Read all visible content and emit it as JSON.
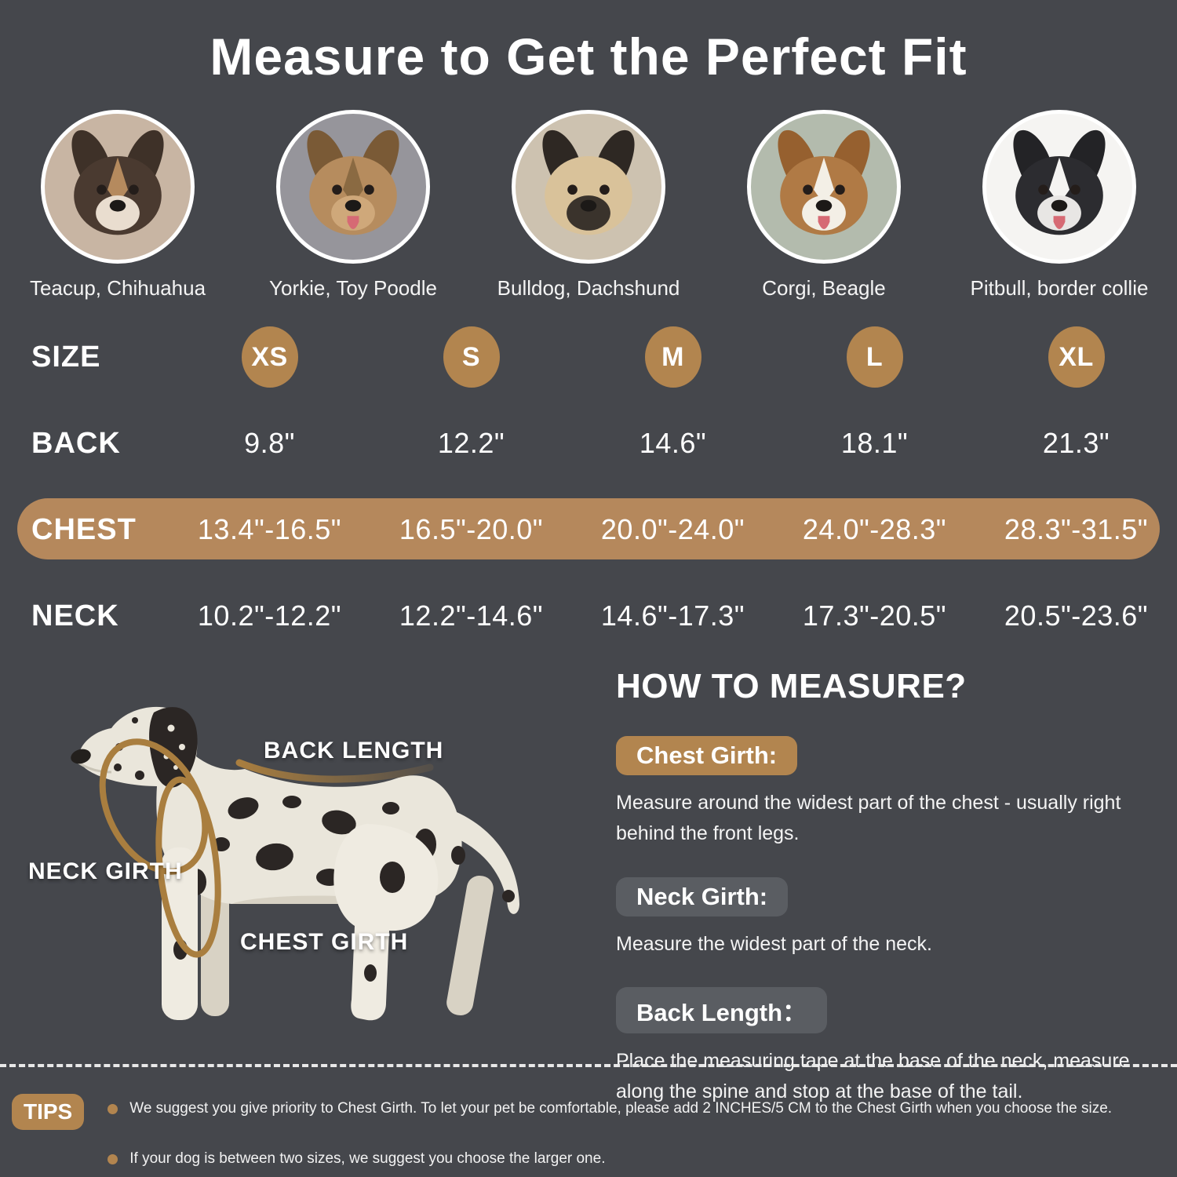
{
  "title": "Measure to Get the Perfect Fit",
  "breeds": [
    {
      "label": "Teacup, Chihuahua",
      "icon": "dog-photo-chihuahua",
      "avatar": {
        "bg": "#c8b5a3",
        "ear": "#3e3128",
        "head": "#4a3a30",
        "muzzle": "#e9ddcf",
        "blaze": "#b58a5e",
        "tongue": ""
      }
    },
    {
      "label": "Yorkie, Toy Poodle",
      "icon": "dog-photo-yorkie",
      "avatar": {
        "bg": "#96959b",
        "ear": "#7a5a36",
        "head": "#b68c5e",
        "muzzle": "#cfa87a",
        "blaze": "#8a6a42",
        "tongue": "#d66a74"
      }
    },
    {
      "label": "Bulldog, Dachshund",
      "icon": "dog-photo-pug",
      "avatar": {
        "bg": "#cdc2b0",
        "ear": "#2e2823",
        "head": "#d9c29a",
        "muzzle": "#3a332c",
        "blaze": "",
        "tongue": ""
      }
    },
    {
      "label": "Corgi, Beagle",
      "icon": "dog-photo-beagle",
      "avatar": {
        "bg": "#b3bbad",
        "ear": "#96602f",
        "head": "#b07a45",
        "muzzle": "#f3efe6",
        "blaze": "#f3efe6",
        "tongue": "#d66a74"
      }
    },
    {
      "label": "Pitbull, border collie",
      "icon": "dog-photo-border-collie",
      "avatar": {
        "bg": "#f5f4f2",
        "ear": "#232326",
        "head": "#2c2c30",
        "muzzle": "#e8e6e4",
        "blaze": "#f5f4f2",
        "tongue": "#d66a74"
      }
    }
  ],
  "size_table": {
    "rows": [
      {
        "label": "SIZE",
        "values": [
          "XS",
          "S",
          "M",
          "L",
          "XL"
        ]
      },
      {
        "label": "BACK",
        "values": [
          "9.8\"",
          "12.2\"",
          "14.6\"",
          "18.1\"",
          "21.3\""
        ]
      },
      {
        "label": "CHEST",
        "values": [
          "13.4\"-16.5\"",
          "16.5\"-20.0\"",
          "20.0\"-24.0\"",
          "24.0\"-28.3\"",
          "28.3\"-31.5\""
        ],
        "highlighted": true
      },
      {
        "label": "NECK",
        "values": [
          "10.2\"-12.2\"",
          "12.2\"-14.6\"",
          "14.6\"-17.3\"",
          "17.3\"-20.5\"",
          "20.5\"-23.6\""
        ]
      }
    ]
  },
  "diagram": {
    "back_length": "BACK LENGTH",
    "neck_girth": "NECK GIRTH",
    "chest_girth": "CHEST GIRTH"
  },
  "how_to_measure": {
    "heading": "HOW TO MEASURE?",
    "items": [
      {
        "label": "Chest Girth:",
        "accent": "brown",
        "text": "Measure around the widest part of the chest - usually right behind the front legs."
      },
      {
        "label": "Neck Girth:",
        "accent": "gray",
        "text": "Measure the widest part of the neck."
      },
      {
        "label": "Back Length：",
        "accent": "gray",
        "text": "Place the measuring tape at the base of the neck, measure along the spine and stop at the base of the tail."
      }
    ]
  },
  "tips": {
    "label": "TIPS",
    "items": [
      "We suggest you give priority to Chest Girth. To let your pet be comfortable, please add 2 INCHES/5 CM to the Chest Girth when you choose the size.",
      "If your dog is between two sizes, we suggest you choose the larger one."
    ]
  },
  "colors": {
    "background": "#45474c",
    "accent_brown": "#b2854f",
    "chest_band": "#b5885c",
    "pill_gray": "#5a5d62",
    "tape": "#a97e3f",
    "text": "#ffffff"
  }
}
